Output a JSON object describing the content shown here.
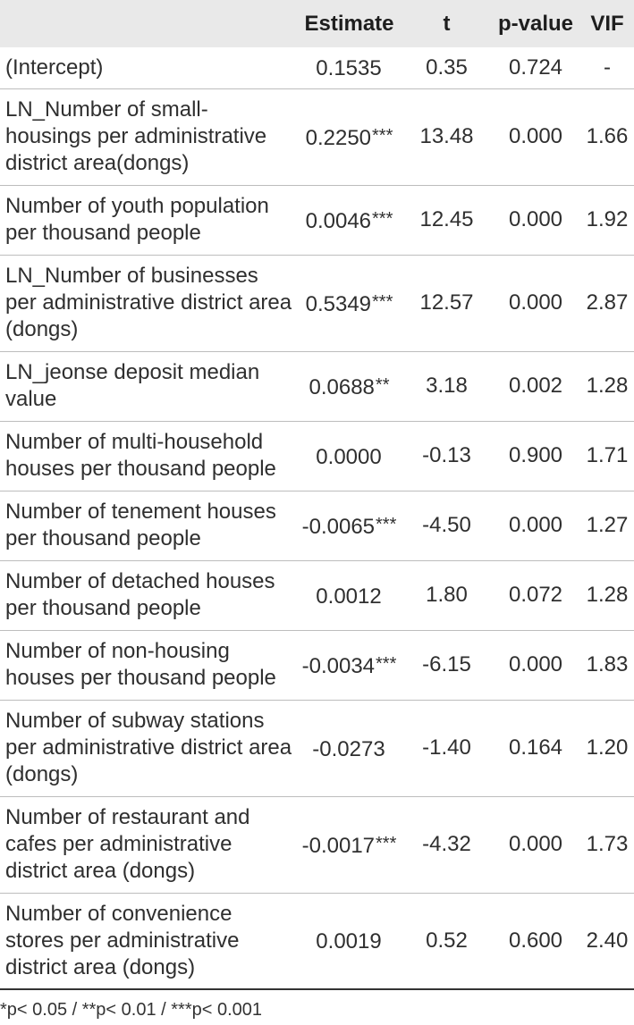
{
  "table": {
    "headers": [
      "",
      "Estimate",
      "t",
      "p-value",
      "VIF"
    ],
    "rows": [
      {
        "variable": "(Intercept)",
        "estimate": "0.1535",
        "stars": "",
        "t": "0.35",
        "p": "0.724",
        "vif": "-"
      },
      {
        "variable": "LN_Number of small-housings per administrative district area(dongs)",
        "estimate": "0.2250",
        "stars": "***",
        "t": "13.48",
        "p": "0.000",
        "vif": "1.66"
      },
      {
        "variable": "Number of youth population per thousand people",
        "estimate": "0.0046",
        "stars": "***",
        "t": "12.45",
        "p": "0.000",
        "vif": "1.92"
      },
      {
        "variable": "LN_Number of businesses per administrative district area (dongs)",
        "estimate": "0.5349",
        "stars": "***",
        "t": "12.57",
        "p": "0.000",
        "vif": "2.87"
      },
      {
        "variable": "LN_jeonse deposit median value",
        "estimate": "0.0688",
        "stars": "**",
        "t": "3.18",
        "p": "0.002",
        "vif": "1.28"
      },
      {
        "variable": "Number of multi-household houses per thousand people",
        "estimate": "0.0000",
        "stars": "",
        "t": "-0.13",
        "p": "0.900",
        "vif": "1.71"
      },
      {
        "variable": "Number of tenement houses per thousand people",
        "estimate": "-0.0065",
        "stars": "***",
        "t": "-4.50",
        "p": "0.000",
        "vif": "1.27"
      },
      {
        "variable": "Number of detached houses per thousand people",
        "estimate": "0.0012",
        "stars": "",
        "t": "1.80",
        "p": "0.072",
        "vif": "1.28"
      },
      {
        "variable": "Number of non-housing houses per thousand people",
        "estimate": "-0.0034",
        "stars": "***",
        "t": "-6.15",
        "p": "0.000",
        "vif": "1.83"
      },
      {
        "variable": "Number of subway stations per administrative district area (dongs)",
        "estimate": "-0.0273",
        "stars": "",
        "t": "-1.40",
        "p": "0.164",
        "vif": "1.20"
      },
      {
        "variable": "Number of restaurant and cafes per administrative district area (dongs)",
        "estimate": "-0.0017",
        "stars": "***",
        "t": "-4.32",
        "p": "0.000",
        "vif": "1.73"
      },
      {
        "variable": "Number of convenience stores per administrative district area (dongs)",
        "estimate": "0.0019",
        "stars": "",
        "t": "0.52",
        "p": "0.600",
        "vif": "2.40"
      }
    ],
    "footnote": "*p< 0.05 / **p< 0.01 / ***p< 0.001"
  }
}
